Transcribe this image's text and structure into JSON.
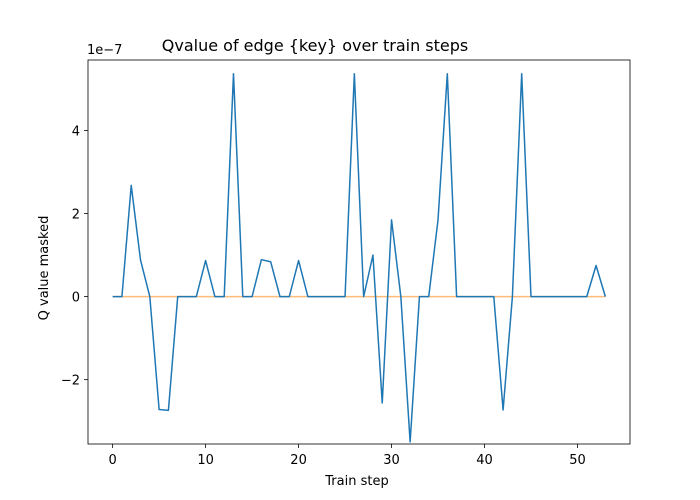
{
  "chart_data": {
    "type": "line",
    "title": "Qvalue of edge {key} over train steps",
    "xlabel": "Train step",
    "ylabel": "Q value masked",
    "y_offset_label": "1e−7",
    "xlim": [
      -2.65,
      55.65
    ],
    "ylim": [
      -3.55,
      5.7
    ],
    "y_scale_factor": 1e-07,
    "x_ticks": [
      0,
      10,
      20,
      30,
      40,
      50
    ],
    "y_ticks": [
      -2,
      0,
      2,
      4
    ],
    "y_tick_labels": [
      "−2",
      "0",
      "2",
      "4"
    ],
    "grid": false,
    "series": [
      {
        "color": "#1f77b4",
        "x": [
          0,
          1,
          2,
          3,
          4,
          5,
          6,
          7,
          8,
          9,
          10,
          11,
          12,
          13,
          14,
          15,
          16,
          17,
          18,
          19,
          20,
          21,
          22,
          23,
          24,
          25,
          26,
          27,
          28,
          29,
          30,
          31,
          32,
          33,
          34,
          35,
          36,
          37,
          38,
          39,
          40,
          41,
          42,
          43,
          44,
          45,
          46,
          47,
          48,
          49,
          50,
          51,
          52,
          53
        ],
        "y": [
          0,
          0,
          2.68,
          0.88,
          0,
          -2.72,
          -2.74,
          0,
          0,
          0,
          0.87,
          0,
          0,
          5.37,
          0,
          0,
          0.89,
          0.84,
          0,
          0,
          0.87,
          0,
          0,
          0,
          0,
          0,
          5.37,
          0,
          1.0,
          -2.56,
          1.85,
          0,
          -3.5,
          0,
          0,
          1.85,
          5.37,
          0,
          0,
          0,
          0,
          0,
          -2.73,
          0,
          5.37,
          0,
          0,
          0,
          0,
          0,
          0,
          0,
          0.75,
          0
        ]
      },
      {
        "color": "#ffbb78",
        "x": [
          0,
          53
        ],
        "y": [
          0,
          0
        ]
      }
    ]
  }
}
